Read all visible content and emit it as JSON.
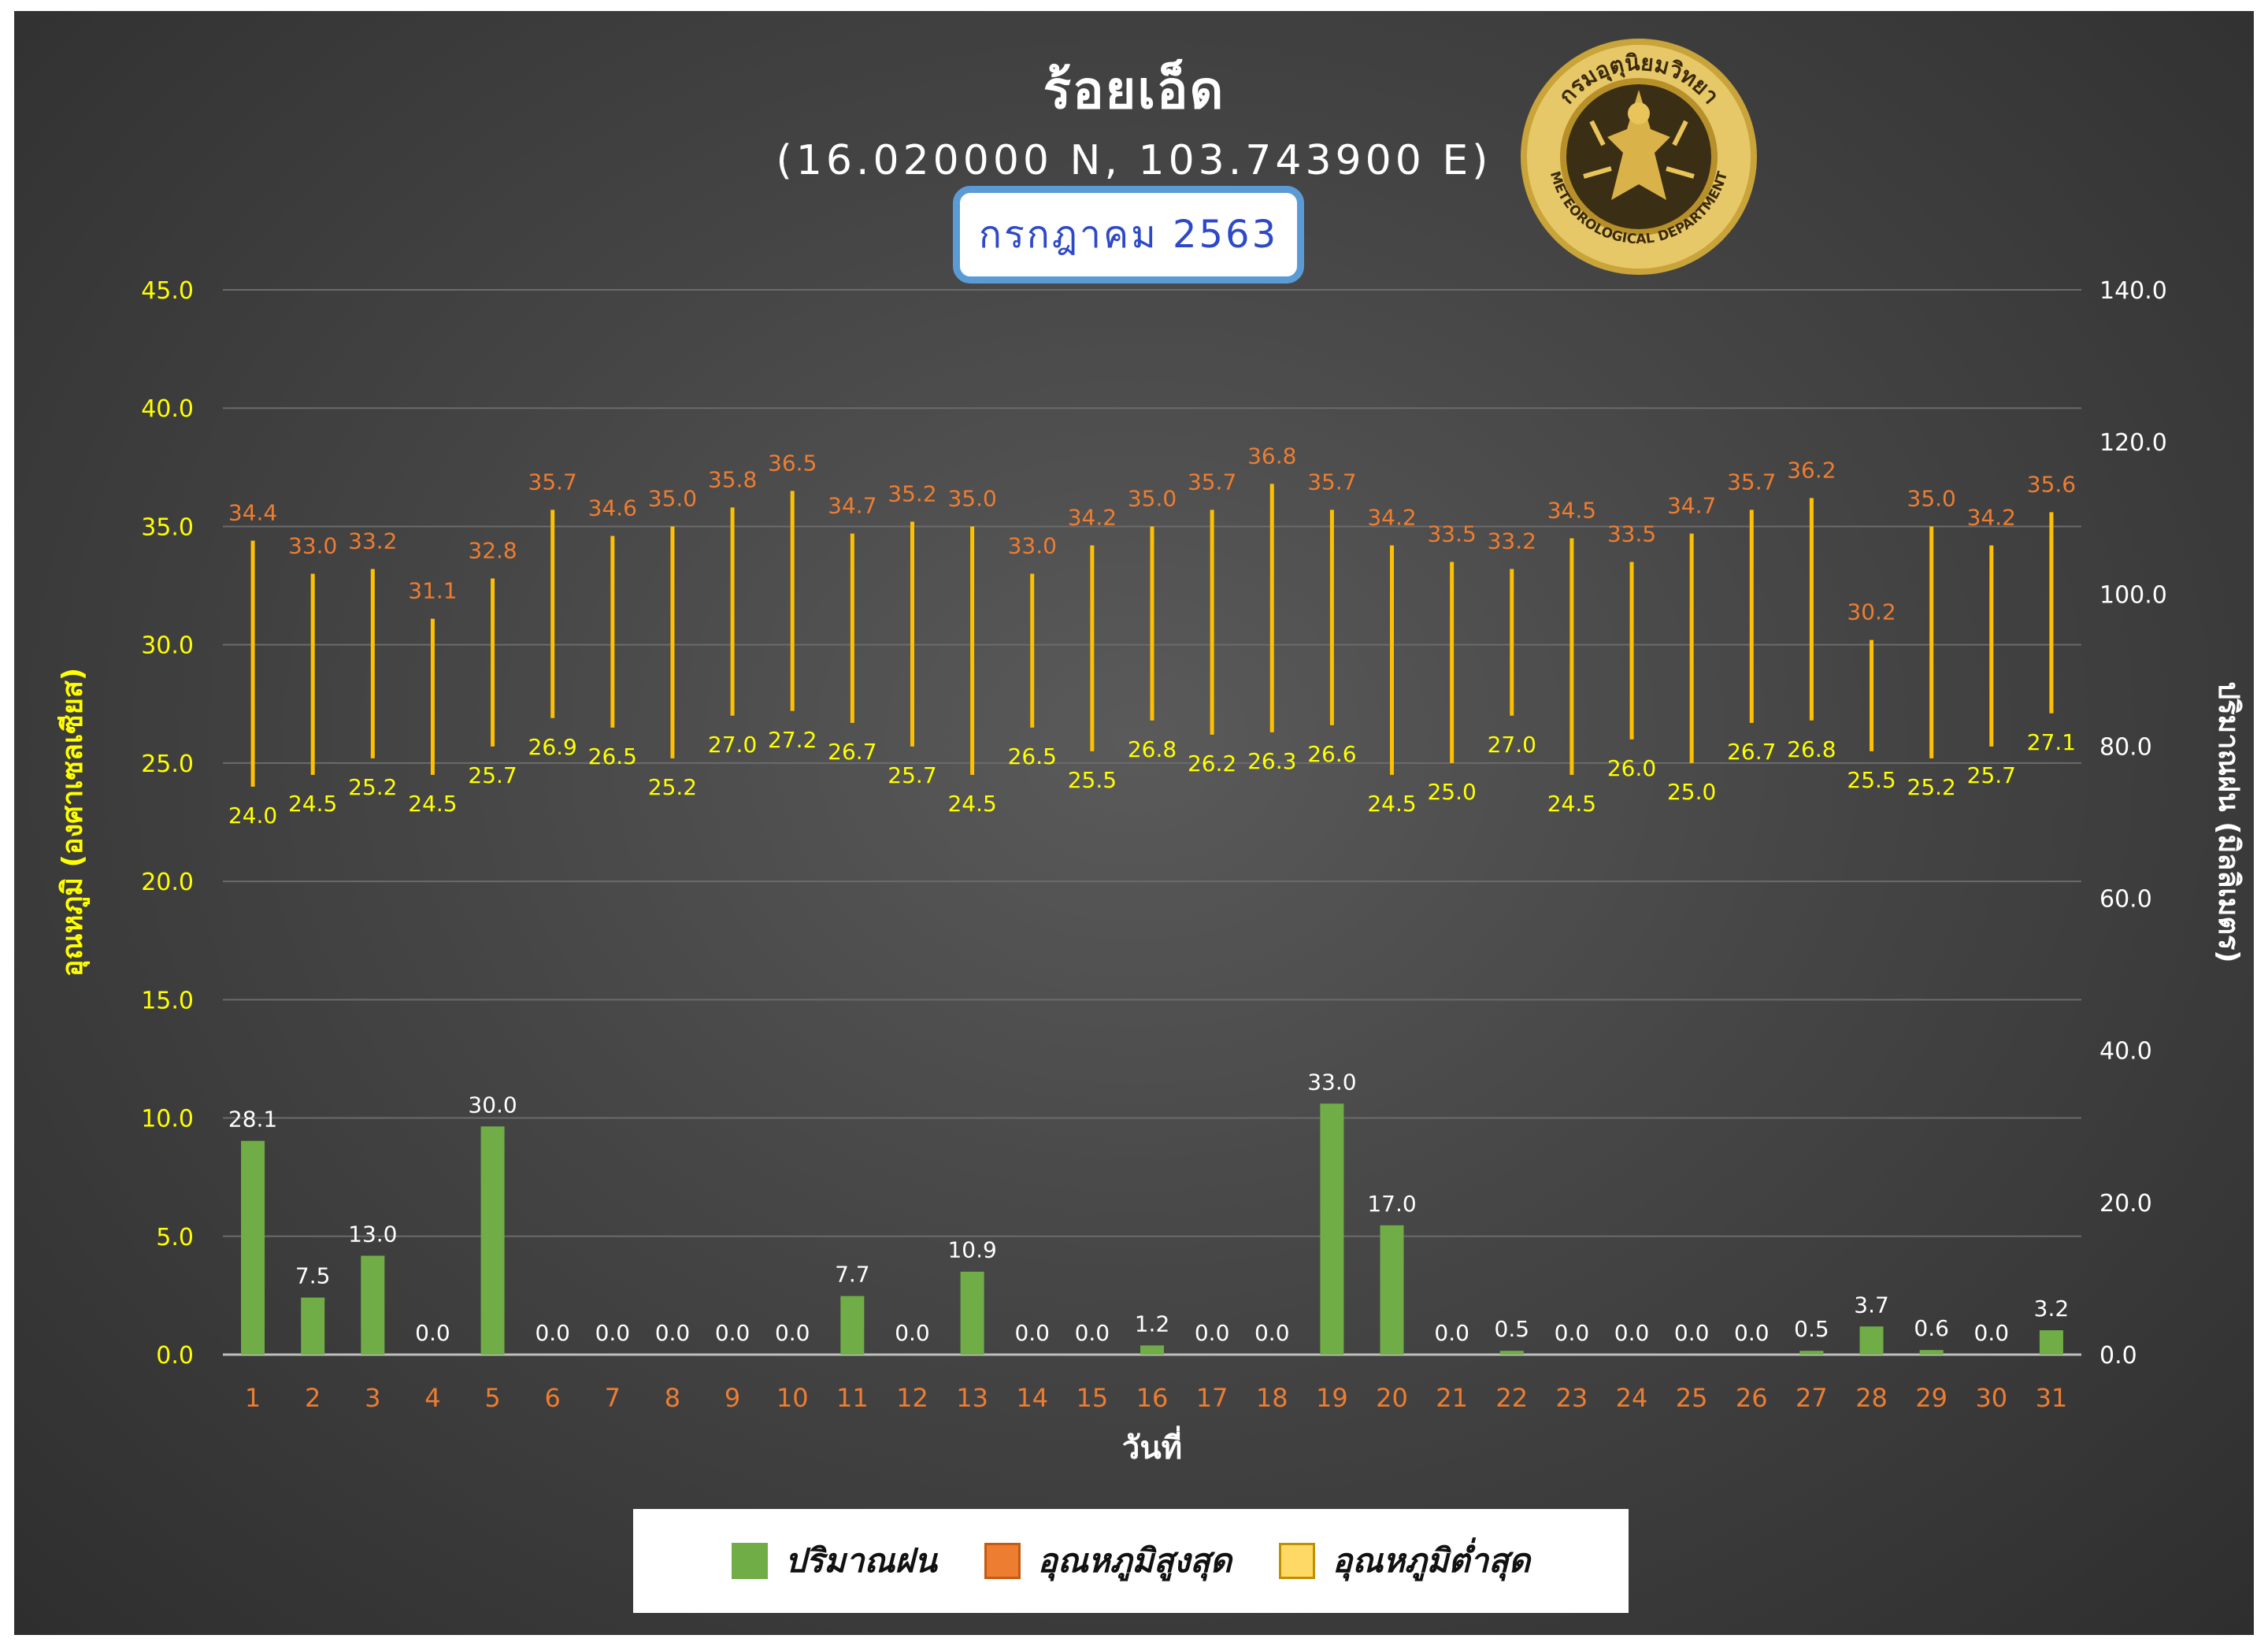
{
  "header": {
    "title": "ร้อยเอ็ด",
    "coords": "(16.020000 N, 103.743900 E)",
    "month": "กรกฎาคม 2563"
  },
  "logo": {
    "icon": "thai-meteorological-department-seal-icon",
    "text_top": "กรมอุตุนิยมวิทยา",
    "text_bottom": "METEOROLOGICAL DEPARTMENT"
  },
  "legend": {
    "items": [
      {
        "label": "ปริมาณฝน",
        "color": "#70ad47"
      },
      {
        "label": "อุณหภูมิสูงสุด",
        "color": "#ed7d31"
      },
      {
        "label": "อุณหภูมิต่ำสุด",
        "color": "#ffd966"
      }
    ]
  },
  "chart_data": {
    "type": "bar",
    "title": "ร้อยเอ็ด",
    "subtitle": "(16.020000 N, 103.743900 E)",
    "xlabel": "วันที่",
    "ylabel_left": "อุณหภูมิ (องศาเซลเซียส)",
    "ylabel_right": "ปริมาณฝน (มิลลิเมตร)",
    "ylim_left": [
      0,
      45
    ],
    "ylim_right": [
      0,
      140
    ],
    "yticks_left": [
      "0.0",
      "5.0",
      "10.0",
      "15.0",
      "20.0",
      "25.0",
      "30.0",
      "35.0",
      "40.0",
      "45.0"
    ],
    "yticks_right": [
      "0.0",
      "20.0",
      "40.0",
      "60.0",
      "80.0",
      "100.0",
      "120.0",
      "140.0"
    ],
    "grid": true,
    "legend_position": "bottom",
    "categories": [
      "1",
      "2",
      "3",
      "4",
      "5",
      "6",
      "7",
      "8",
      "9",
      "10",
      "11",
      "12",
      "13",
      "14",
      "15",
      "16",
      "17",
      "18",
      "19",
      "20",
      "21",
      "22",
      "23",
      "24",
      "25",
      "26",
      "27",
      "28",
      "29",
      "30",
      "31"
    ],
    "series": [
      {
        "name": "ปริมาณฝน",
        "axis": "right",
        "color": "#70ad47",
        "values": [
          28.1,
          7.5,
          13.0,
          0.0,
          30.0,
          0.0,
          0.0,
          0.0,
          0.0,
          0.0,
          7.7,
          0.0,
          10.9,
          0.0,
          0.0,
          1.2,
          0.0,
          0.0,
          33.0,
          17.0,
          0.0,
          0.5,
          0.0,
          0.0,
          0.0,
          0.0,
          0.5,
          3.7,
          0.6,
          0.0,
          3.2
        ]
      },
      {
        "name": "อุณหภูมิสูงสุด",
        "axis": "left",
        "color": "#ed7d31",
        "values": [
          34.4,
          33.0,
          33.2,
          31.1,
          32.8,
          35.7,
          34.6,
          35.0,
          35.8,
          36.5,
          34.7,
          35.2,
          35.0,
          33.0,
          34.2,
          35.0,
          35.7,
          36.8,
          35.7,
          34.2,
          33.5,
          33.2,
          34.5,
          33.5,
          34.7,
          35.7,
          36.2,
          30.2,
          35.0,
          34.2,
          35.6
        ]
      },
      {
        "name": "อุณหภูมิต่ำสุด",
        "axis": "left",
        "color": "#ffd966",
        "values": [
          24.0,
          24.5,
          25.2,
          24.5,
          25.7,
          26.9,
          26.5,
          25.2,
          27.0,
          27.2,
          26.7,
          25.7,
          24.5,
          26.5,
          25.5,
          26.8,
          26.2,
          26.3,
          26.6,
          24.5,
          25.0,
          27.0,
          24.5,
          26.0,
          25.0,
          26.7,
          26.8,
          25.5,
          25.2,
          25.7,
          27.1
        ]
      }
    ]
  }
}
